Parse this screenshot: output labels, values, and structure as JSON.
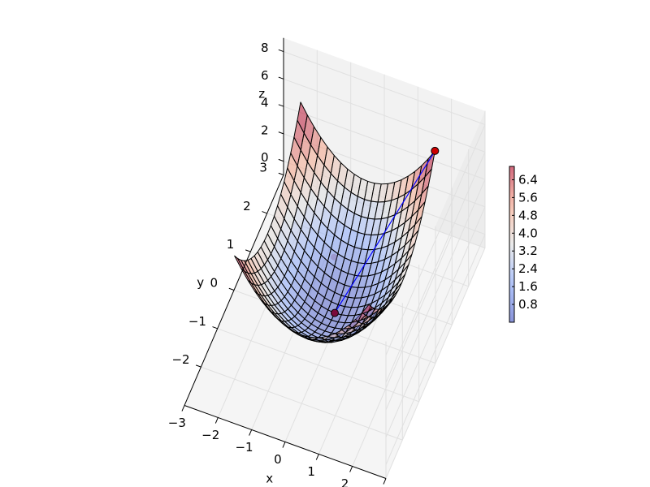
{
  "chart_data": {
    "type": "surface3d",
    "function": "z = x^2 + y^2",
    "axes": {
      "x": {
        "label": "x",
        "range": [
          -3,
          3
        ],
        "ticks": [
          -3,
          -2,
          -1,
          0,
          1,
          2,
          3
        ],
        "tick_labels": [
          "−3",
          "−2",
          "−1",
          "0",
          "1",
          "2",
          "3"
        ]
      },
      "y": {
        "label": "y",
        "range": [
          -3,
          3
        ],
        "ticks": [
          -2,
          -1,
          0,
          1,
          2,
          3
        ],
        "tick_labels": [
          "−2",
          "−1",
          "0",
          "1",
          "2",
          "3"
        ]
      },
      "z": {
        "label": "z",
        "range": [
          -1,
          9
        ],
        "ticks": [
          0,
          2,
          4,
          6,
          8
        ],
        "tick_labels": [
          "0",
          "2",
          "4",
          "6",
          "8"
        ]
      }
    },
    "surface": {
      "x_range": [
        -2,
        2
      ],
      "y_range": [
        -2,
        2
      ],
      "grid_lines": 21,
      "colormap": "coolwarm",
      "alpha": 0.5,
      "edge_color": "#000000"
    },
    "points": [
      {
        "x": 2,
        "y": 2,
        "z": 8,
        "color": "#cc0000"
      },
      {
        "x": 0,
        "y": 0,
        "z": 0,
        "color": "#7a0a3a"
      }
    ],
    "line": {
      "from": [
        2,
        2,
        8
      ],
      "to": [
        0,
        0,
        0
      ],
      "color": "#0000ff"
    },
    "colorbar": {
      "ticks": [
        0.8,
        1.6,
        2.4,
        3.2,
        4.0,
        4.8,
        5.6,
        6.4
      ],
      "tick_labels": [
        "0.8",
        "1.6",
        "2.4",
        "3.2",
        "4.0",
        "4.8",
        "5.6",
        "6.4"
      ],
      "range": [
        0,
        7.0
      ]
    },
    "grid": true
  }
}
